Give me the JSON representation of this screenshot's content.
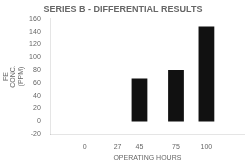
{
  "chart_data": {
    "type": "bar",
    "title": "SERIES B - DIFFERENTIAL RESULTS",
    "xlabel": "OPERATING HOURS",
    "ylabel": "FE\nCONC.\n(PPM)",
    "x": [
      0,
      27,
      45,
      75,
      100
    ],
    "values": [
      0,
      0,
      67,
      80,
      148
    ],
    "color": "#111111",
    "xlim": [
      -12,
      115
    ],
    "xticks": [
      0,
      27,
      45,
      75,
      100
    ],
    "ylim": [
      -20,
      160
    ],
    "yticks": [
      -20,
      0,
      20,
      40,
      60,
      80,
      100,
      120,
      140,
      160
    ],
    "grid": false
  }
}
